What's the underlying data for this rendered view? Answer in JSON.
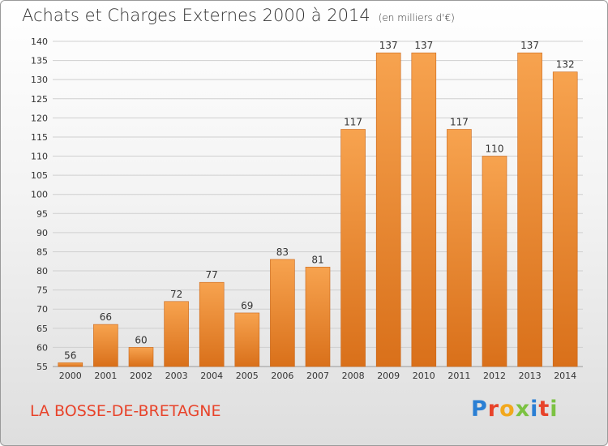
{
  "header": {
    "title": "Achats et Charges Externes 2000 à 2014",
    "unit": "(en milliers d'€)"
  },
  "footer": {
    "commune": "LA BOSSE-DE-BRETAGNE",
    "logo_letters": [
      {
        "ch": "P",
        "color": "#2a7fd4"
      },
      {
        "ch": "r",
        "color": "#e8432a"
      },
      {
        "ch": "o",
        "color": "#f2a81d"
      },
      {
        "ch": "x",
        "color": "#7cc242"
      },
      {
        "ch": "i",
        "color": "#2a7fd4"
      },
      {
        "ch": "t",
        "color": "#e8432a"
      },
      {
        "ch": "i",
        "color": "#7cc242"
      }
    ]
  },
  "colors": {
    "bar_top": "#f7a34f",
    "bar_bottom": "#d9701a",
    "grid": "#cfcfcf",
    "axis_text": "#333333"
  },
  "chart_data": {
    "type": "bar",
    "categories": [
      "2000",
      "2001",
      "2002",
      "2003",
      "2004",
      "2005",
      "2006",
      "2007",
      "2008",
      "2009",
      "2010",
      "2011",
      "2012",
      "2013",
      "2014"
    ],
    "values": [
      56,
      66,
      60,
      72,
      77,
      69,
      83,
      81,
      117,
      137,
      137,
      117,
      110,
      137,
      132
    ],
    "ylim": [
      55,
      140
    ],
    "yticks": [
      55,
      60,
      65,
      70,
      75,
      80,
      85,
      90,
      95,
      100,
      105,
      110,
      115,
      120,
      125,
      130,
      135,
      140
    ],
    "grid": true,
    "data_labels": true
  }
}
